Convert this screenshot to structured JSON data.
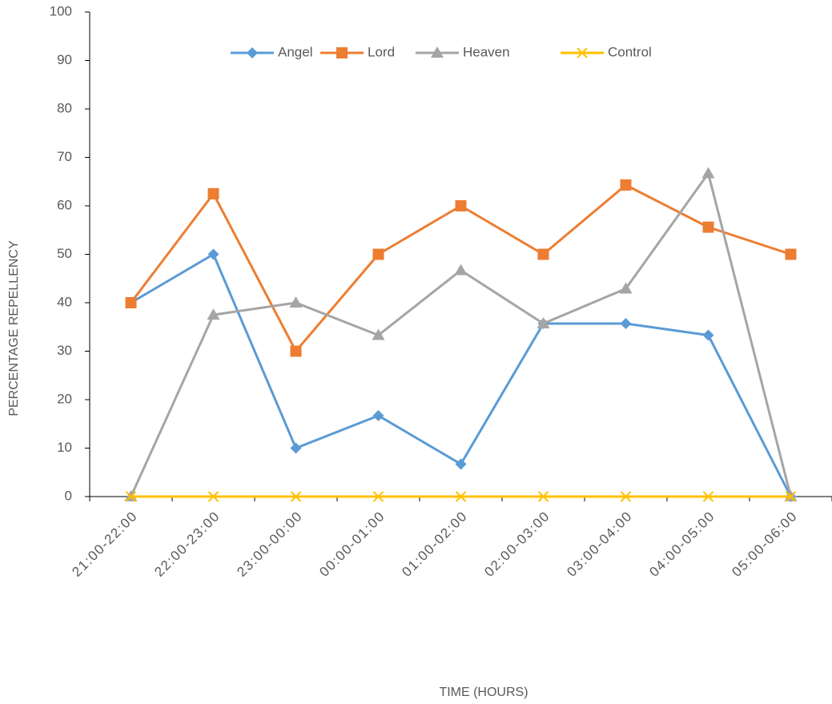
{
  "chart_data": {
    "type": "line",
    "xlabel": "TIME (HOURS)",
    "ylabel": "PERCENTAGE REPELLENCY",
    "categories": [
      "21:00-22:00",
      "22:00-23:00",
      "23:00-00:00",
      "00:00-01:00",
      "01:00-02:00",
      "02:00-03:00",
      "03:00-04:00",
      "04:00-05:00",
      "05:00-06:00"
    ],
    "series": [
      {
        "name": "Angel",
        "color": "#5b9bd5",
        "marker": "diamond",
        "values": [
          40,
          50,
          10,
          16.7,
          6.7,
          35.7,
          35.7,
          33.3,
          0
        ]
      },
      {
        "name": "Lord",
        "color": "#ed7d31",
        "marker": "square",
        "values": [
          40,
          62.5,
          30,
          50,
          60,
          50,
          64.3,
          55.6,
          50
        ]
      },
      {
        "name": "Heaven",
        "color": "#a5a5a5",
        "marker": "triangle",
        "values": [
          0,
          37.5,
          40,
          33.3,
          46.7,
          35.7,
          42.9,
          66.7,
          0
        ]
      },
      {
        "name": "Control",
        "color": "#ffc000",
        "marker": "x",
        "values": [
          0,
          0,
          0,
          0,
          0,
          0,
          0,
          0,
          0
        ]
      }
    ],
    "ylim": [
      0,
      100
    ],
    "yticks": [
      0,
      10,
      20,
      30,
      40,
      50,
      60,
      70,
      80,
      90,
      100
    ],
    "legend": "top",
    "grid": false
  }
}
